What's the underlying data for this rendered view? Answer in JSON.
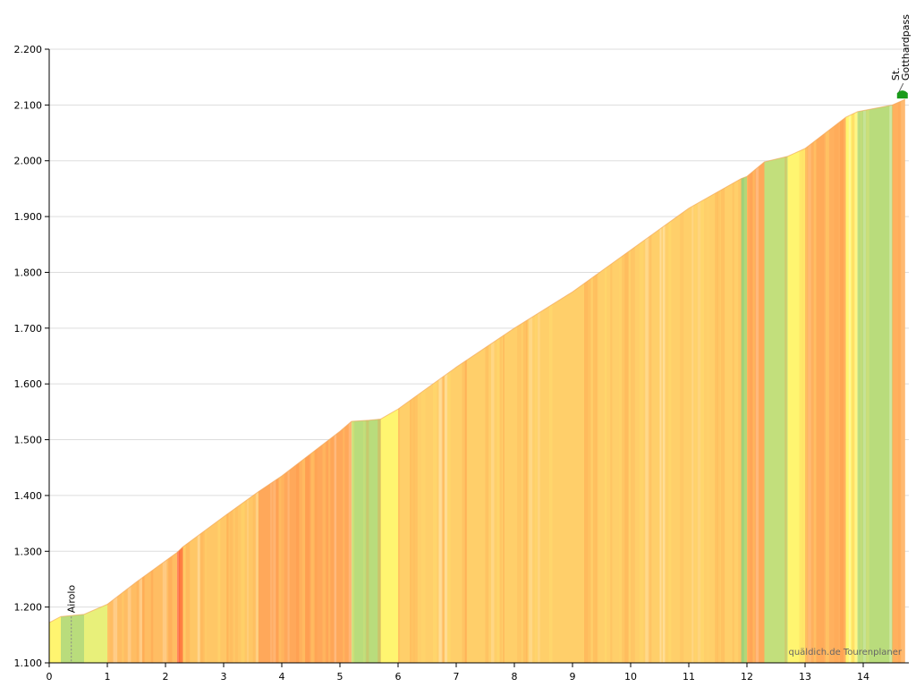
{
  "chart_data": {
    "type": "area",
    "title": "",
    "xlabel": "",
    "ylabel": "",
    "xlim": [
      0,
      14.7
    ],
    "ylim": [
      1100,
      2200
    ],
    "x_ticks": [
      0,
      1,
      2,
      3,
      4,
      5,
      6,
      7,
      8,
      9,
      10,
      11,
      12,
      13,
      14
    ],
    "x_tick_labels": [
      "0",
      "1",
      "2",
      "3",
      "4",
      "5",
      "6",
      "7",
      "8",
      "9",
      "10",
      "11",
      "12",
      "13",
      "14"
    ],
    "y_ticks": [
      1100,
      1200,
      1300,
      1400,
      1500,
      1600,
      1700,
      1800,
      1900,
      2000,
      2100,
      2200
    ],
    "y_tick_labels": [
      "1.100",
      "1.200",
      "1.300",
      "1.400",
      "1.500",
      "1.600",
      "1.700",
      "1.800",
      "1.900",
      "2.000",
      "2.100",
      "2.200"
    ],
    "grid": true,
    "profile": [
      {
        "x": 0.0,
        "y": 1172
      },
      {
        "x": 0.2,
        "y": 1183
      },
      {
        "x": 0.6,
        "y": 1187
      },
      {
        "x": 1.0,
        "y": 1205
      },
      {
        "x": 1.5,
        "y": 1245
      },
      {
        "x": 2.2,
        "y": 1298
      },
      {
        "x": 2.3,
        "y": 1308
      },
      {
        "x": 3.0,
        "y": 1362
      },
      {
        "x": 3.6,
        "y": 1407
      },
      {
        "x": 4.0,
        "y": 1435
      },
      {
        "x": 4.5,
        "y": 1475
      },
      {
        "x": 5.0,
        "y": 1515
      },
      {
        "x": 5.2,
        "y": 1533
      },
      {
        "x": 5.5,
        "y": 1535
      },
      {
        "x": 5.7,
        "y": 1537
      },
      {
        "x": 6.0,
        "y": 1555
      },
      {
        "x": 7.0,
        "y": 1630
      },
      {
        "x": 8.0,
        "y": 1700
      },
      {
        "x": 9.0,
        "y": 1765
      },
      {
        "x": 10.0,
        "y": 1840
      },
      {
        "x": 11.0,
        "y": 1915
      },
      {
        "x": 11.9,
        "y": 1968
      },
      {
        "x": 12.0,
        "y": 1972
      },
      {
        "x": 12.3,
        "y": 1998
      },
      {
        "x": 12.7,
        "y": 2008
      },
      {
        "x": 13.0,
        "y": 2022
      },
      {
        "x": 13.7,
        "y": 2078
      },
      {
        "x": 13.9,
        "y": 2088
      },
      {
        "x": 14.4,
        "y": 2098
      },
      {
        "x": 14.5,
        "y": 2100
      },
      {
        "x": 14.72,
        "y": 2110
      }
    ],
    "gradient_colors": [
      {
        "from": 0.0,
        "to": 0.2,
        "color": "#fff570"
      },
      {
        "from": 0.2,
        "to": 0.6,
        "color": "#b9dc7c"
      },
      {
        "from": 0.6,
        "to": 1.0,
        "color": "#e8f07a"
      },
      {
        "from": 1.0,
        "to": 2.2,
        "color": "#ffbd63"
      },
      {
        "from": 2.2,
        "to": 2.3,
        "color": "#ff6a3a"
      },
      {
        "from": 2.3,
        "to": 3.6,
        "color": "#ffc766"
      },
      {
        "from": 3.6,
        "to": 5.2,
        "color": "#ffa85a"
      },
      {
        "from": 5.2,
        "to": 5.7,
        "color": "#b9dc7c"
      },
      {
        "from": 5.7,
        "to": 6.0,
        "color": "#fff570"
      },
      {
        "from": 6.0,
        "to": 11.9,
        "color": "#ffcf6a"
      },
      {
        "from": 11.9,
        "to": 12.0,
        "color": "#9ed27a"
      },
      {
        "from": 12.0,
        "to": 12.3,
        "color": "#ffa85a"
      },
      {
        "from": 12.3,
        "to": 12.7,
        "color": "#c2df7c"
      },
      {
        "from": 12.7,
        "to": 13.0,
        "color": "#fff570"
      },
      {
        "from": 13.0,
        "to": 13.7,
        "color": "#ffb05e"
      },
      {
        "from": 13.7,
        "to": 13.9,
        "color": "#fff570"
      },
      {
        "from": 13.9,
        "to": 14.5,
        "color": "#b9dc7c"
      },
      {
        "from": 14.5,
        "to": 14.72,
        "color": "#ffb05e"
      }
    ],
    "waypoints": [
      {
        "name": "Airolo",
        "x": 0.38,
        "y": 1183
      },
      {
        "name": "St. Gotthardpass",
        "name_lines": [
          "St.",
          "Gotthardpass"
        ],
        "x": 14.72,
        "y": 2110
      }
    ],
    "annotations": [
      "quäldich.de Tourenplaner"
    ]
  },
  "colors": {
    "axis": "#000000",
    "grid": "#dddddd",
    "summit_marker": "#1a9a1a"
  }
}
